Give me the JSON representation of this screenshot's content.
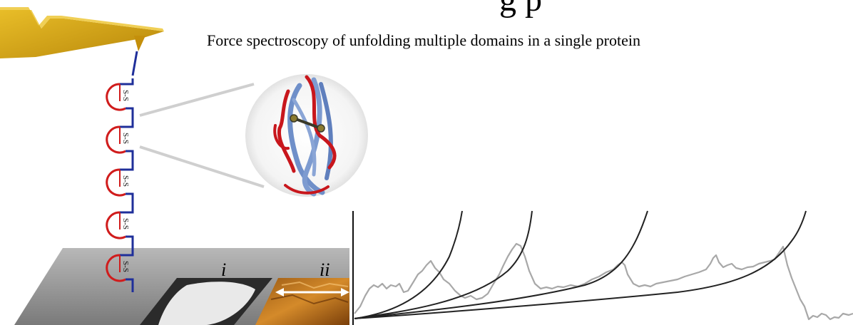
{
  "figure": {
    "title_fragment": "g  p",
    "caption": "Force spectroscopy of unfolding multiple domains in a single protein",
    "bond_label": "S-S",
    "panel_labels": [
      "i",
      "ii"
    ]
  },
  "colors": {
    "cantilever": "#d6a40f",
    "linker": "#1f2f9a",
    "domain_loop": "#d01c1c",
    "substrate": "#8e8e8e",
    "ribbon_blue": "#6f8fc9",
    "ribbon_red": "#c8161c",
    "trace": "#a8a8a8",
    "fit_curve": "#222222"
  },
  "molecule": {
    "domain_count": 5
  },
  "force_trace": {
    "unfolding_peaks": 4,
    "fit_curves": 4
  }
}
